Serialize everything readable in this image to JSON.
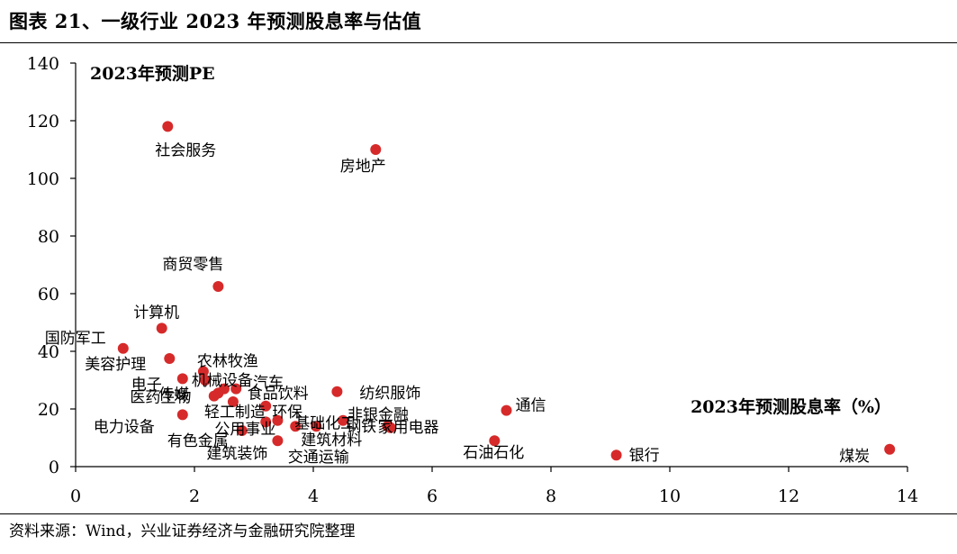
{
  "figure": {
    "title": "图表 21、一级行业 2023 年预测股息率与估值",
    "source": "资料来源：Wind，兴业证券经济与金融研究院整理"
  },
  "colors": {
    "marker": "#d62a2a",
    "axis": "#000000",
    "text": "#000000"
  },
  "chart_data": {
    "type": "scatter",
    "title": "",
    "xlabel": "2023年预测股息率（%）",
    "ylabel": "2023年预测PE",
    "xlim": [
      0,
      14
    ],
    "ylim": [
      0,
      140
    ],
    "xticks": [
      0,
      2,
      4,
      6,
      8,
      10,
      12,
      14
    ],
    "yticks": [
      0,
      20,
      40,
      60,
      80,
      100,
      120,
      140
    ],
    "grid": false,
    "legend": "none",
    "points": [
      {
        "label": "社会服务",
        "x": 1.55,
        "y": 118
      },
      {
        "label": "房地产",
        "x": 5.05,
        "y": 110
      },
      {
        "label": "商贸零售",
        "x": 2.4,
        "y": 62.5
      },
      {
        "label": "计算机",
        "x": 1.45,
        "y": 48
      },
      {
        "label": "国防军工",
        "x": 0.8,
        "y": 41
      },
      {
        "label": "美容护理",
        "x": 1.58,
        "y": 37.5
      },
      {
        "label": "农林牧渔",
        "x": 2.15,
        "y": 33
      },
      {
        "label": "电子",
        "x": 1.8,
        "y": 30.5
      },
      {
        "label": "机械设备",
        "x": 2.18,
        "y": 30
      },
      {
        "label": "传媒",
        "x": 2.7,
        "y": 27
      },
      {
        "label": "汽车",
        "x": 2.5,
        "y": 27
      },
      {
        "label": "医药生物",
        "x": 2.4,
        "y": 25.5
      },
      {
        "label": "食品饮料",
        "x": 2.33,
        "y": 24.5
      },
      {
        "label": "轻工制造",
        "x": 2.65,
        "y": 22.5
      },
      {
        "label": "电力设备",
        "x": 1.8,
        "y": 18
      },
      {
        "label": "环保",
        "x": 3.2,
        "y": 21
      },
      {
        "label": "公用事业",
        "x": 3.4,
        "y": 16
      },
      {
        "label": "纺织服饰",
        "x": 4.4,
        "y": 26
      },
      {
        "label": "基础化工",
        "x": 3.2,
        "y": 15.5
      },
      {
        "label": "钢铁",
        "x": 3.7,
        "y": 14
      },
      {
        "label": "非银金融",
        "x": 4.5,
        "y": 16
      },
      {
        "label": "通信",
        "x": 7.25,
        "y": 19.5
      },
      {
        "label": "家用电器",
        "x": 5.25,
        "y": 14
      },
      {
        "label": "建筑材料",
        "x": 4.05,
        "y": 14
      },
      {
        "label": "有色金属",
        "x": 2.8,
        "y": 12.5
      },
      {
        "label": "建筑装饰",
        "x": 3.4,
        "y": 9
      },
      {
        "label": "交通运输",
        "x": 5.3,
        "y": 13.5
      },
      {
        "label": "石油石化",
        "x": 7.05,
        "y": 9
      },
      {
        "label": "银行",
        "x": 9.1,
        "y": 4
      },
      {
        "label": "煤炭",
        "x": 13.7,
        "y": 6
      }
    ]
  }
}
